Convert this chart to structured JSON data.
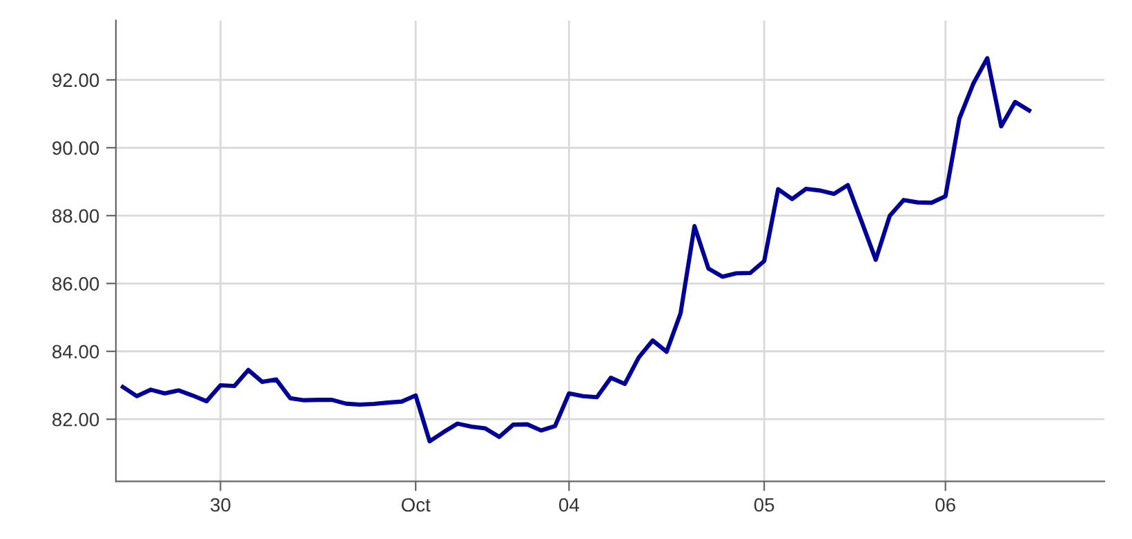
{
  "chart_data": {
    "type": "line",
    "categories": [
      null,
      null,
      null,
      null,
      null,
      null,
      null,
      "30",
      null,
      null,
      null,
      null,
      null,
      null,
      null,
      null,
      null,
      null,
      null,
      null,
      null,
      "Oct",
      null,
      null,
      null,
      null,
      null,
      null,
      null,
      null,
      null,
      null,
      "04",
      null,
      null,
      null,
      null,
      null,
      null,
      null,
      null,
      null,
      null,
      null,
      null,
      null,
      "05",
      null,
      null,
      null,
      null,
      null,
      null,
      null,
      null,
      null,
      null,
      null,
      null,
      "06",
      null,
      null,
      null,
      null,
      null,
      null
    ],
    "series": [
      {
        "color": "#000099",
        "values": [
          82.95,
          82.68,
          82.87,
          82.76,
          82.85,
          82.7,
          82.53,
          83.0,
          82.98,
          83.45,
          83.1,
          83.17,
          82.62,
          82.56,
          82.57,
          82.57,
          82.46,
          82.43,
          82.45,
          82.49,
          82.52,
          82.7,
          81.35,
          81.62,
          81.87,
          81.78,
          81.73,
          81.48,
          81.84,
          81.85,
          81.67,
          81.8,
          82.76,
          82.68,
          82.65,
          83.22,
          83.04,
          83.82,
          84.32,
          83.99,
          85.12,
          87.69,
          86.44,
          86.2,
          86.3,
          86.31,
          86.66,
          88.78,
          88.49,
          88.79,
          88.74,
          88.64,
          88.9,
          87.81,
          86.7,
          87.99,
          88.46,
          88.39,
          88.38,
          88.57,
          90.86,
          91.89,
          92.64,
          90.63,
          91.35,
          91.1
        ]
      }
    ],
    "ylim": [
      80.17,
      93.75
    ],
    "yticks": [
      {
        "value": 82,
        "label": "82.00"
      },
      {
        "value": 84,
        "label": "84.00"
      },
      {
        "value": 86,
        "label": "86.00"
      },
      {
        "value": 88,
        "label": "88.00"
      },
      {
        "value": 90,
        "label": "90.00"
      },
      {
        "value": 92,
        "label": "92.00"
      }
    ],
    "grid": true,
    "line_style": "solid"
  }
}
